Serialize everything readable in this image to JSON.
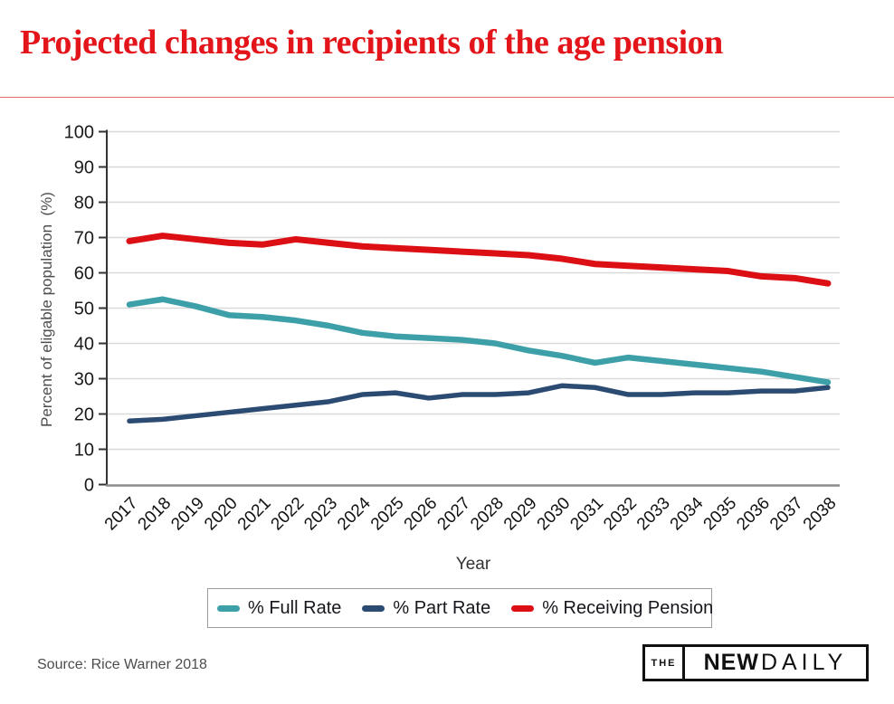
{
  "header": {
    "title": "Projected changes in recipients of the age pension"
  },
  "chart_data": {
    "type": "line",
    "title": "",
    "xlabel": "Year",
    "ylabel": "Percent of eligable population  (%)",
    "ylim": [
      0,
      100
    ],
    "ytick_step": 10,
    "grid": true,
    "legend_position": "bottom",
    "categories": [
      2017,
      2018,
      2019,
      2020,
      2021,
      2022,
      2023,
      2024,
      2025,
      2026,
      2027,
      2028,
      2029,
      2030,
      2031,
      2032,
      2033,
      2034,
      2035,
      2036,
      2037,
      2038
    ],
    "series": [
      {
        "name": "% Full Rate",
        "color": "#3da0a9",
        "values": [
          51,
          52.5,
          50.5,
          48,
          47.5,
          46.5,
          45,
          43,
          42,
          41.5,
          41,
          40,
          38,
          36.5,
          34.5,
          36,
          35,
          34,
          33,
          32,
          30.5,
          29
        ]
      },
      {
        "name": "% Part Rate",
        "color": "#2b4b72",
        "values": [
          18,
          18.5,
          19.5,
          20.5,
          21.5,
          22.5,
          23.5,
          25.5,
          26,
          24.5,
          25.5,
          25.5,
          26,
          28,
          27.5,
          25.5,
          25.5,
          26,
          26,
          26.5,
          26.5,
          27.5
        ]
      },
      {
        "name": "% Receiving Pension",
        "color": "#dc1014",
        "values": [
          69,
          70.5,
          69.5,
          68.5,
          68,
          69.5,
          68.5,
          67.5,
          67,
          66.5,
          66,
          65.5,
          65,
          64,
          62.5,
          62,
          61.5,
          61,
          60.5,
          59,
          58.5,
          57
        ]
      }
    ]
  },
  "footer": {
    "source": "Source: Rice Warner 2018",
    "logo": {
      "the": "THE",
      "new": "NEW",
      "daily": "DAILY"
    }
  },
  "colors": {
    "title_red": "#e3151b",
    "divider_red": "#e26a6a",
    "axis_text": "#1a1a1a",
    "axis_line": "#333333",
    "bottom_axis_line": "#8c8c8c",
    "grid": "#d9d9d9",
    "muted_text": "#4d4d4d"
  }
}
